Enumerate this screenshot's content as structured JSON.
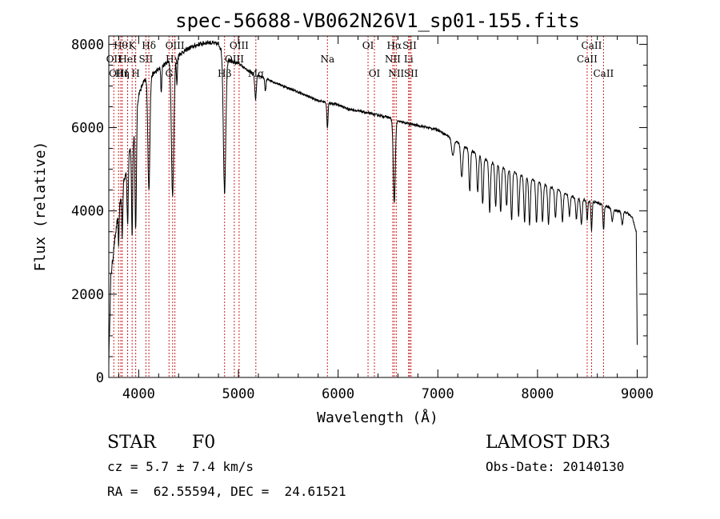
{
  "chart_data": {
    "type": "line",
    "title": "spec-56688-VB062N26V1_sp01-155.fits",
    "xlabel": "Wavelength (Å)",
    "ylabel": "Flux (relative)",
    "xlim": [
      3700,
      9100
    ],
    "ylim": [
      0,
      8200
    ],
    "xticks": [
      4000,
      5000,
      6000,
      7000,
      8000,
      9000
    ],
    "yticks": [
      0,
      2000,
      4000,
      6000,
      8000
    ],
    "xtick_labels": [
      "4000",
      "5000",
      "6000",
      "7000",
      "8000",
      "9000"
    ],
    "ytick_labels": [
      "0",
      "2000",
      "4000",
      "6000",
      "8000"
    ],
    "series": [
      {
        "name": "flux",
        "color": "#000000",
        "continuum": {
          "x": [
            3700,
            3720,
            3760,
            3800,
            3850,
            3900,
            3950,
            4000,
            4050,
            4100,
            4200,
            4300,
            4400,
            4500,
            4600,
            4700,
            4800,
            4900,
            5000,
            5100,
            5200,
            5300,
            5400,
            5500,
            5600,
            5700,
            5800,
            5900,
            6000,
            6100,
            6200,
            6300,
            6400,
            6500,
            6600,
            6700,
            6800,
            6900,
            7000,
            7100,
            7200,
            7300,
            7400,
            7500,
            7600,
            7700,
            7800,
            7900,
            8000,
            8100,
            8200,
            8300,
            8400,
            8500,
            8600,
            8700,
            8800,
            8900,
            8950,
            8990,
            9000
          ],
          "y": [
            400,
            2400,
            3300,
            4000,
            4700,
            5300,
            5900,
            6800,
            7100,
            7200,
            7400,
            7600,
            7750,
            7900,
            8000,
            8050,
            8000,
            7600,
            7550,
            7350,
            7250,
            7150,
            7050,
            6950,
            6850,
            6750,
            6650,
            6600,
            6550,
            6450,
            6400,
            6350,
            6300,
            6250,
            6150,
            6100,
            6050,
            6000,
            5950,
            5800,
            5650,
            5500,
            5350,
            5200,
            5100,
            5000,
            4900,
            4800,
            4700,
            4600,
            4500,
            4400,
            4300,
            4250,
            4200,
            4100,
            4000,
            3950,
            3850,
            3500,
            800
          ]
        },
        "absorption_lines": [
          {
            "center": 3799,
            "depth": 800,
            "width": 4
          },
          {
            "center": 3835,
            "depth": 1100,
            "width": 5
          },
          {
            "center": 3889,
            "depth": 1500,
            "width": 6
          },
          {
            "center": 3934,
            "depth": 2300,
            "width": 6
          },
          {
            "center": 3970,
            "depth": 2700,
            "width": 7
          },
          {
            "center": 4102,
            "depth": 2700,
            "width": 10
          },
          {
            "center": 4226,
            "depth": 600,
            "width": 5
          },
          {
            "center": 4340,
            "depth": 3300,
            "width": 12
          },
          {
            "center": 4383,
            "depth": 700,
            "width": 5
          },
          {
            "center": 4861,
            "depth": 3300,
            "width": 12
          },
          {
            "center": 5172,
            "depth": 600,
            "width": 8
          },
          {
            "center": 5270,
            "depth": 300,
            "width": 6
          },
          {
            "center": 5893,
            "depth": 600,
            "width": 6
          },
          {
            "center": 6563,
            "depth": 2000,
            "width": 10
          },
          {
            "center": 7150,
            "depth": 400,
            "width": 12
          },
          {
            "center": 7240,
            "depth": 800,
            "width": 10
          },
          {
            "center": 7320,
            "depth": 1000,
            "width": 8
          },
          {
            "center": 7400,
            "depth": 900,
            "width": 8
          },
          {
            "center": 7450,
            "depth": 1100,
            "width": 8
          },
          {
            "center": 7520,
            "depth": 1200,
            "width": 8
          },
          {
            "center": 7580,
            "depth": 1000,
            "width": 8
          },
          {
            "center": 7630,
            "depth": 1100,
            "width": 8
          },
          {
            "center": 7690,
            "depth": 900,
            "width": 8
          },
          {
            "center": 7740,
            "depth": 1200,
            "width": 8
          },
          {
            "center": 7810,
            "depth": 1000,
            "width": 8
          },
          {
            "center": 7870,
            "depth": 1100,
            "width": 8
          },
          {
            "center": 7920,
            "depth": 1100,
            "width": 8
          },
          {
            "center": 7990,
            "depth": 1000,
            "width": 8
          },
          {
            "center": 8050,
            "depth": 900,
            "width": 8
          },
          {
            "center": 8110,
            "depth": 900,
            "width": 8
          },
          {
            "center": 8180,
            "depth": 700,
            "width": 8
          },
          {
            "center": 8250,
            "depth": 700,
            "width": 8
          },
          {
            "center": 8320,
            "depth": 500,
            "width": 8
          },
          {
            "center": 8390,
            "depth": 500,
            "width": 8
          },
          {
            "center": 8440,
            "depth": 600,
            "width": 8
          },
          {
            "center": 8498,
            "depth": 500,
            "width": 6
          },
          {
            "center": 8542,
            "depth": 700,
            "width": 6
          },
          {
            "center": 8662,
            "depth": 600,
            "width": 6
          },
          {
            "center": 8750,
            "depth": 300,
            "width": 8
          },
          {
            "center": 8850,
            "depth": 300,
            "width": 8
          }
        ]
      }
    ],
    "marker_lines": [
      {
        "x": 3750,
        "label": "OII",
        "row": 1
      },
      {
        "x": 3798,
        "label": "OIII",
        "row": 2
      },
      {
        "x": 3820,
        "label": "Hθ",
        "row": 0
      },
      {
        "x": 3835,
        "label": "Hη",
        "row": 2
      },
      {
        "x": 3889,
        "label": "HeI",
        "row": 1
      },
      {
        "x": 3934,
        "label": "K",
        "row": 0
      },
      {
        "x": 3970,
        "label": "H",
        "row": 2
      },
      {
        "x": 4072,
        "label": "SII",
        "row": 1
      },
      {
        "x": 4102,
        "label": "Hδ",
        "row": 0
      },
      {
        "x": 4304,
        "label": "G",
        "row": 2
      },
      {
        "x": 4340,
        "label": "Hγ",
        "row": 1
      },
      {
        "x": 4363,
        "label": "OIII",
        "row": 0
      },
      {
        "x": 4861,
        "label": "Hβ",
        "row": 2
      },
      {
        "x": 4959,
        "label": "OIII",
        "row": 1
      },
      {
        "x": 5007,
        "label": "OIII",
        "row": 0
      },
      {
        "x": 5175,
        "label": "Mg",
        "row": 2
      },
      {
        "x": 5893,
        "label": "Na",
        "row": 1
      },
      {
        "x": 6300,
        "label": "OI",
        "row": 0
      },
      {
        "x": 6364,
        "label": "OI",
        "row": 2
      },
      {
        "x": 6548,
        "label": "NII",
        "row": 1
      },
      {
        "x": 6563,
        "label": "Hα",
        "row": 0
      },
      {
        "x": 6583,
        "label": "NII",
        "row": 2
      },
      {
        "x": 6707,
        "label": "Li",
        "row": 1
      },
      {
        "x": 6717,
        "label": "SII",
        "row": 0
      },
      {
        "x": 6731,
        "label": "SII",
        "row": 2
      },
      {
        "x": 8498,
        "label": "CaII",
        "row": 1
      },
      {
        "x": 8542,
        "label": "CaII",
        "row": 0
      },
      {
        "x": 8662,
        "label": "CaII",
        "row": 2
      }
    ]
  },
  "info": {
    "object_class": "STAR",
    "subclass": "F0",
    "redshift": "cz = 5.7 ± 7.4 km/s",
    "coords": "RA =  62.55594, DEC =  24.61521",
    "survey": "LAMOST DR3",
    "obs_date": "Obs-Date: 20140130"
  },
  "colors": {
    "marker_line": "#cc2222",
    "axis": "#000000",
    "spectrum": "#000000"
  }
}
